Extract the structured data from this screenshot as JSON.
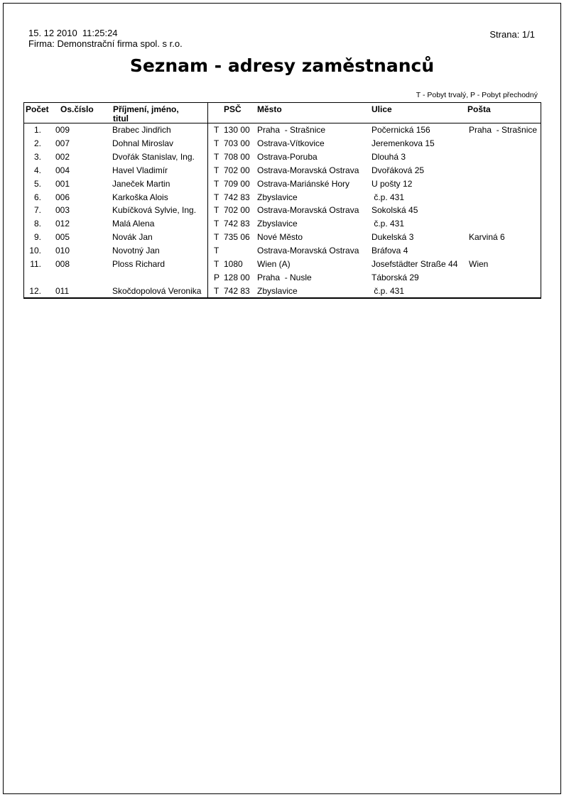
{
  "header": {
    "datetime": "15. 12 2010  11:25:24",
    "company": "Firma: Demonstrační firma spol. s r.o.",
    "page": "Strana: 1/1"
  },
  "title": "Seznam - adresy zaměstnanců",
  "legend": "T - Pobyt trvalý, P - Pobyt přechodný",
  "table": {
    "headers": {
      "pocet": "Počet",
      "oscislo": "Os.číslo",
      "prijmeni_line1": "Příjmení, jméno,",
      "prijmeni_line2": "titul",
      "psc": "PSČ",
      "mesto": "Město",
      "ulice": "Ulice",
      "posta": "Pošta"
    },
    "rows": [
      {
        "num": "1.",
        "os": "009",
        "name": "Brabec Jindřich",
        "flag": "T",
        "psc": "130 00",
        "city": "Praha  - Strašnice",
        "street": "Počernická 156",
        "post": "Praha  - Strašnice"
      },
      {
        "num": "2.",
        "os": "007",
        "name": "Dohnal Miroslav",
        "flag": "T",
        "psc": "703 00",
        "city": "Ostrava-Vítkovice",
        "street": "Jeremenkova 15",
        "post": ""
      },
      {
        "num": "3.",
        "os": "002",
        "name": "Dvořák Stanislav, Ing.",
        "flag": "T",
        "psc": "708 00",
        "city": "Ostrava-Poruba",
        "street": "Dlouhá 3",
        "post": ""
      },
      {
        "num": "4.",
        "os": "004",
        "name": "Havel Vladimír",
        "flag": "T",
        "psc": "702 00",
        "city": "Ostrava-Moravská Ostrava",
        "street": "Dvořáková 25",
        "post": ""
      },
      {
        "num": "5.",
        "os": "001",
        "name": "Janeček Martin",
        "flag": "T",
        "psc": "709 00",
        "city": "Ostrava-Mariánské Hory",
        "street": "U pošty 12",
        "post": ""
      },
      {
        "num": "6.",
        "os": "006",
        "name": "Karkoška Alois",
        "flag": "T",
        "psc": "742 83",
        "city": "Zbyslavice",
        "street": " č.p. 431",
        "post": ""
      },
      {
        "num": "7.",
        "os": "003",
        "name": "Kubíčková Sylvie, Ing.",
        "flag": "T",
        "psc": "702 00",
        "city": "Ostrava-Moravská Ostrava",
        "street": "Sokolská 45",
        "post": ""
      },
      {
        "num": "8.",
        "os": "012",
        "name": "Malá Alena",
        "flag": "T",
        "psc": "742 83",
        "city": "Zbyslavice",
        "street": " č.p. 431",
        "post": ""
      },
      {
        "num": "9.",
        "os": "005",
        "name": "Novák Jan",
        "flag": "T",
        "psc": "735 06",
        "city": "Nové Město",
        "street": "Dukelská 3",
        "post": "Karviná 6"
      },
      {
        "num": "10.",
        "os": "010",
        "name": "Novotný Jan",
        "flag": "T",
        "psc": "",
        "city": "Ostrava-Moravská Ostrava",
        "street": "Bráfova 4",
        "post": ""
      },
      {
        "num": "11.",
        "os": "008",
        "name": "Ploss Richard",
        "flag": "T",
        "psc": "1080",
        "city": "Wien (A)",
        "street": "Josefstädter Straße 44",
        "post": "Wien"
      },
      {
        "num": "",
        "os": "",
        "name": "",
        "flag": "P",
        "psc": "128 00",
        "city": "Praha  - Nusle",
        "street": "Táborská 29",
        "post": ""
      },
      {
        "num": "12.",
        "os": "011",
        "name": "Skočdopolová Veronika",
        "flag": "T",
        "psc": "742 83",
        "city": "Zbyslavice",
        "street": " č.p. 431",
        "post": ""
      }
    ]
  }
}
